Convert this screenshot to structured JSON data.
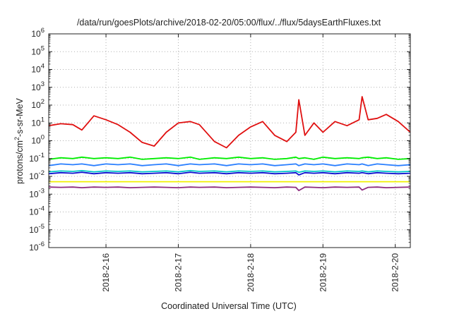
{
  "chart_data": {
    "type": "line",
    "title": "/data/run/goesPlots/archive/2018-02-20/05:00/flux/../flux/5daysEarthFluxes.txt",
    "xlabel": "Coordinated Universal Time (UTC)",
    "ylabel": "protons/cm²-s-sr-MeV",
    "y_scale": "log",
    "ylim": [
      1e-06,
      1000000.0
    ],
    "y_ticks": [
      "10-6",
      "10-5",
      "10-4",
      "10-3",
      "10-2",
      "10-1",
      "100",
      "101",
      "102",
      "103",
      "104",
      "105",
      "106"
    ],
    "xlim": [
      "2018-02-15 05:00",
      "2018-02-20 05:00"
    ],
    "x_ticks": [
      "2018-2-16",
      "2018-2-17",
      "2018-2-18",
      "2018-2-19",
      "2018-2-20"
    ],
    "grid": true,
    "x": [
      "2018-02-15 05:00",
      "2018-02-15 09:00",
      "2018-02-15 13:00",
      "2018-02-15 16:00",
      "2018-02-15 20:00",
      "2018-02-16 00:00",
      "2018-02-16 04:00",
      "2018-02-16 08:00",
      "2018-02-16 12:00",
      "2018-02-16 16:00",
      "2018-02-16 20:00",
      "2018-02-17 00:00",
      "2018-02-17 04:00",
      "2018-02-17 07:00",
      "2018-02-17 12:00",
      "2018-02-17 16:00",
      "2018-02-17 20:00",
      "2018-02-18 00:00",
      "2018-02-18 04:00",
      "2018-02-18 08:00",
      "2018-02-18 12:00",
      "2018-02-18 15:00",
      "2018-02-18 16:00",
      "2018-02-18 18:00",
      "2018-02-18 21:00",
      "2018-02-19 00:00",
      "2018-02-19 04:00",
      "2018-02-19 08:00",
      "2018-02-19 12:00",
      "2018-02-19 13:00",
      "2018-02-19 15:00",
      "2018-02-19 18:00",
      "2018-02-19 21:00",
      "2018-02-20 01:00",
      "2018-02-20 05:00"
    ],
    "series": [
      {
        "color": "#e01010",
        "values": [
          7,
          9,
          8,
          4,
          25,
          15,
          8,
          3,
          0.8,
          0.5,
          3,
          10,
          12,
          8,
          0.9,
          0.4,
          2,
          6,
          12,
          2,
          0.9,
          3,
          200,
          2,
          10,
          3,
          12,
          7,
          15,
          300,
          15,
          18,
          30,
          12,
          3
        ]
      },
      {
        "color": "#00ee00",
        "values": [
          0.09,
          0.11,
          0.1,
          0.12,
          0.1,
          0.11,
          0.1,
          0.12,
          0.09,
          0.1,
          0.11,
          0.1,
          0.12,
          0.09,
          0.11,
          0.1,
          0.12,
          0.1,
          0.11,
          0.09,
          0.1,
          0.12,
          0.1,
          0.11,
          0.09,
          0.12,
          0.1,
          0.11,
          0.1,
          0.11,
          0.12,
          0.1,
          0.11,
          0.09,
          0.1
        ]
      },
      {
        "color": "#2a7fff",
        "values": [
          0.04,
          0.05,
          0.045,
          0.05,
          0.04,
          0.05,
          0.045,
          0.05,
          0.04,
          0.045,
          0.05,
          0.04,
          0.05,
          0.045,
          0.05,
          0.04,
          0.05,
          0.045,
          0.05,
          0.04,
          0.045,
          0.05,
          0.04,
          0.05,
          0.045,
          0.05,
          0.04,
          0.05,
          0.045,
          0.05,
          0.04,
          0.05,
          0.045,
          0.04,
          0.045
        ]
      },
      {
        "color": "#00c8c8",
        "values": [
          0.018,
          0.02,
          0.019,
          0.021,
          0.018,
          0.02,
          0.019,
          0.02,
          0.018,
          0.019,
          0.02,
          0.018,
          0.021,
          0.019,
          0.02,
          0.018,
          0.02,
          0.019,
          0.02,
          0.018,
          0.019,
          0.02,
          0.017,
          0.02,
          0.019,
          0.02,
          0.018,
          0.02,
          0.019,
          0.02,
          0.018,
          0.02,
          0.019,
          0.018,
          0.019
        ]
      },
      {
        "color": "#1010d0",
        "values": [
          0.014,
          0.016,
          0.015,
          0.017,
          0.014,
          0.016,
          0.015,
          0.016,
          0.014,
          0.015,
          0.016,
          0.014,
          0.017,
          0.015,
          0.016,
          0.014,
          0.016,
          0.015,
          0.016,
          0.014,
          0.015,
          0.016,
          0.012,
          0.016,
          0.015,
          0.016,
          0.014,
          0.016,
          0.015,
          0.016,
          0.014,
          0.016,
          0.015,
          0.014,
          0.015
        ]
      },
      {
        "color": "#f0f000",
        "values": [
          0.005,
          0.005,
          0.005,
          0.005,
          0.005,
          0.005,
          0.005,
          0.005,
          0.005,
          0.005,
          0.005,
          0.005,
          0.005,
          0.005,
          0.005,
          0.005,
          0.005,
          0.005,
          0.005,
          0.005,
          0.005,
          0.005,
          0.005,
          0.005,
          0.005,
          0.005,
          0.005,
          0.005,
          0.005,
          0.005,
          0.005,
          0.005,
          0.005,
          0.005,
          0.005
        ]
      },
      {
        "color": "#8e2c80",
        "values": [
          0.0025,
          0.0024,
          0.0025,
          0.0023,
          0.0025,
          0.0024,
          0.0025,
          0.0023,
          0.0024,
          0.0025,
          0.0024,
          0.0023,
          0.0025,
          0.0024,
          0.0025,
          0.0023,
          0.0024,
          0.0025,
          0.0024,
          0.0023,
          0.0025,
          0.0024,
          0.0016,
          0.0025,
          0.0024,
          0.0023,
          0.0025,
          0.0024,
          0.0025,
          0.0017,
          0.0024,
          0.0025,
          0.0023,
          0.0024,
          0.0025
        ]
      }
    ]
  }
}
